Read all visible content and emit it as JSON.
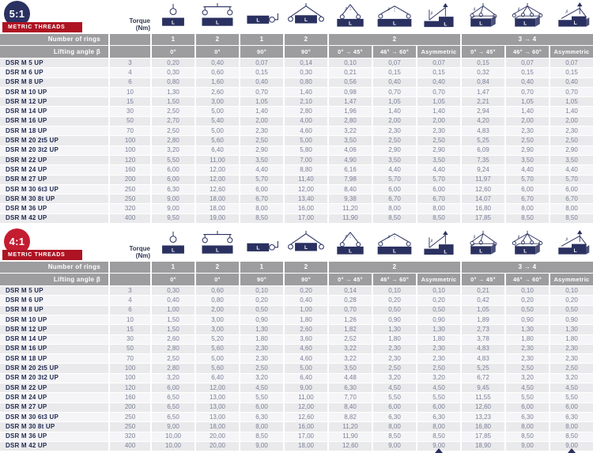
{
  "colors": {
    "navy": "#2a3160",
    "label_red": "#ae1322",
    "ratio4_red": "#c41c30",
    "header_gray": "#9d9da0"
  },
  "tables": [
    {
      "ratio": "5:1",
      "badge_color": "#2a3160",
      "thread_label": "METRIC THREADS",
      "torque_header": {
        "line1": "Torque",
        "line2": "(Nm)"
      },
      "rings_header": "Number of rings",
      "angle_header": "Lifting angle β",
      "rings": [
        "1",
        "2",
        "1",
        "2",
        "2",
        "3 → 4"
      ],
      "ring_spans": [
        1,
        1,
        1,
        1,
        3,
        3
      ],
      "angles": [
        "0°",
        "0°",
        "90°",
        "90°",
        "0° → 45°",
        "46° → 60°",
        "Asymmetric",
        "0° → 45°",
        "46° → 60°",
        "Asymmetric"
      ],
      "icons": [
        "one-ring-vertical",
        "two-rings-spreader",
        "one-ring-side",
        "two-rings-side",
        "two-leg-sling-narrow",
        "two-leg-sling-wide",
        "two-leg-asymmetric",
        "three-leg-sling",
        "four-leg-sling",
        "multi-leg-asymmetric"
      ],
      "rows": [
        {
          "name": "DSR M 5 UP",
          "torque": "3",
          "values": [
            "0,20",
            "0,40",
            "0,07",
            "0,14",
            "0,10",
            "0,07",
            "0,07",
            "0,15",
            "0,07",
            "0,07"
          ]
        },
        {
          "name": "DSR M 6 UP",
          "torque": "4",
          "values": [
            "0,30",
            "0,60",
            "0,15",
            "0,30",
            "0,21",
            "0,15",
            "0,15",
            "0,32",
            "0,15",
            "0,15"
          ]
        },
        {
          "name": "DSR M 8 UP",
          "torque": "6",
          "values": [
            "0,80",
            "1,60",
            "0,40",
            "0,80",
            "0,56",
            "0,40",
            "0,40",
            "0,84",
            "0,40",
            "0,40"
          ]
        },
        {
          "name": "DSR M 10 UP",
          "torque": "10",
          "values": [
            "1,30",
            "2,60",
            "0,70",
            "1,40",
            "0,98",
            "0,70",
            "0,70",
            "1,47",
            "0,70",
            "0,70"
          ]
        },
        {
          "name": "DSR M 12 UP",
          "torque": "15",
          "values": [
            "1,50",
            "3,00",
            "1,05",
            "2,10",
            "1,47",
            "1,05",
            "1,05",
            "2,21",
            "1,05",
            "1,05"
          ]
        },
        {
          "name": "DSR M 14 UP",
          "torque": "30",
          "values": [
            "2,50",
            "5,00",
            "1,40",
            "2,80",
            "1,96",
            "1,40",
            "1,40",
            "2,94",
            "1,40",
            "1,40"
          ]
        },
        {
          "name": "DSR M 16 UP",
          "torque": "50",
          "values": [
            "2,70",
            "5,40",
            "2,00",
            "4,00",
            "2,80",
            "2,00",
            "2,00",
            "4,20",
            "2,00",
            "2,00"
          ]
        },
        {
          "name": "DSR M 18 UP",
          "torque": "70",
          "values": [
            "2,50",
            "5,00",
            "2,30",
            "4,60",
            "3,22",
            "2,30",
            "2,30",
            "4,83",
            "2,30",
            "2,30"
          ]
        },
        {
          "name": "DSR M 20 2t5 UP",
          "torque": "100",
          "values": [
            "2,80",
            "5,60",
            "2,50",
            "5,00",
            "3,50",
            "2,50",
            "2,50",
            "5,25",
            "2,50",
            "2,50"
          ]
        },
        {
          "name": "DSR M 20 3t2 UP",
          "torque": "100",
          "values": [
            "3,20",
            "6,40",
            "2,90",
            "5,80",
            "4,06",
            "2,90",
            "2,90",
            "6,09",
            "2,90",
            "2,90"
          ]
        },
        {
          "name": "DSR M 22 UP",
          "torque": "120",
          "values": [
            "5,50",
            "11,00",
            "3,50",
            "7,00",
            "4,90",
            "3,50",
            "3,50",
            "7,35",
            "3,50",
            "3,50"
          ]
        },
        {
          "name": "DSR M 24 UP",
          "torque": "160",
          "values": [
            "6,00",
            "12,00",
            "4,40",
            "8,80",
            "6,16",
            "4,40",
            "4,40",
            "9,24",
            "4,40",
            "4,40"
          ]
        },
        {
          "name": "DSR M 27 UP",
          "torque": "200",
          "values": [
            "6,00",
            "12,00",
            "5,70",
            "11,40",
            "7,98",
            "5,70",
            "5,70",
            "11,97",
            "5,70",
            "5,70"
          ]
        },
        {
          "name": "DSR M 30 6t3 UP",
          "torque": "250",
          "values": [
            "6,30",
            "12,60",
            "6,00",
            "12,00",
            "8,40",
            "6,00",
            "6,00",
            "12,60",
            "6,00",
            "6,00"
          ]
        },
        {
          "name": "DSR M 30 8t UP",
          "torque": "250",
          "values": [
            "9,00",
            "18,00",
            "6,70",
            "13,40",
            "9,38",
            "6,70",
            "6,70",
            "14,07",
            "6,70",
            "6,70"
          ]
        },
        {
          "name": "DSR M 36 UP",
          "torque": "320",
          "values": [
            "9,00",
            "18,00",
            "8,00",
            "16,00",
            "11,20",
            "8,00",
            "8,00",
            "16,80",
            "8,00",
            "8,00"
          ]
        },
        {
          "name": "DSR M 42 UP",
          "torque": "400",
          "values": [
            "9,50",
            "19,00",
            "8,50",
            "17,00",
            "11,90",
            "8,50",
            "8,50",
            "17,85",
            "8,50",
            "8,50"
          ]
        }
      ]
    },
    {
      "ratio": "4:1",
      "badge_color": "#c41c30",
      "thread_label": "METRIC THREADS",
      "torque_header": {
        "line1": "Torque",
        "line2": "(Nm)"
      },
      "rings_header": "Number of rings",
      "angle_header": "Lifting angle β",
      "rings": [
        "1",
        "2",
        "1",
        "2",
        "2",
        "3 → 4"
      ],
      "ring_spans": [
        1,
        1,
        1,
        1,
        3,
        3
      ],
      "angles": [
        "0°",
        "0°",
        "90°",
        "90°",
        "0° → 45°",
        "46° → 60°",
        "Asymmetric",
        "0° → 45°",
        "46° → 60°",
        "Asymmetric"
      ],
      "icons": [
        "one-ring-vertical",
        "two-rings-spreader",
        "one-ring-side",
        "two-rings-side",
        "two-leg-sling-narrow",
        "two-leg-sling-wide",
        "two-leg-asymmetric",
        "three-leg-sling",
        "four-leg-sling",
        "multi-leg-asymmetric"
      ],
      "rows": [
        {
          "name": "DSR M 5 UP",
          "torque": "3",
          "values": [
            "0,30",
            "0,60",
            "0,10",
            "0,20",
            "0,14",
            "0,10",
            "0,10",
            "0,21",
            "0,10",
            "0,10"
          ]
        },
        {
          "name": "DSR M 6 UP",
          "torque": "4",
          "values": [
            "0,40",
            "0,80",
            "0,20",
            "0,40",
            "0,28",
            "0,20",
            "0,20",
            "0,42",
            "0,20",
            "0,20"
          ]
        },
        {
          "name": "DSR M 8 UP",
          "torque": "6",
          "values": [
            "1,00",
            "2,00",
            "0,50",
            "1,00",
            "0,70",
            "0,50",
            "0,50",
            "1,05",
            "0,50",
            "0,50"
          ]
        },
        {
          "name": "DSR M 10 UP",
          "torque": "10",
          "values": [
            "1,50",
            "3,00",
            "0,90",
            "1,80",
            "1,26",
            "0,90",
            "0,90",
            "1,89",
            "0,90",
            "0,90"
          ]
        },
        {
          "name": "DSR M 12 UP",
          "torque": "15",
          "values": [
            "1,50",
            "3,00",
            "1,30",
            "2,60",
            "1,82",
            "1,30",
            "1,30",
            "2,73",
            "1,30",
            "1,30"
          ]
        },
        {
          "name": "DSR M 14 UP",
          "torque": "30",
          "values": [
            "2,60",
            "5,20",
            "1,80",
            "3,60",
            "2,52",
            "1,80",
            "1,80",
            "3,78",
            "1,80",
            "1,80"
          ]
        },
        {
          "name": "DSR M 16 UP",
          "torque": "50",
          "values": [
            "2,80",
            "5,60",
            "2,30",
            "4,60",
            "3,22",
            "2,30",
            "2,30",
            "4,83",
            "2,30",
            "2,30"
          ]
        },
        {
          "name": "DSR M 18 UP",
          "torque": "70",
          "values": [
            "2,50",
            "5,00",
            "2,30",
            "4,60",
            "3,22",
            "2,30",
            "2,30",
            "4,83",
            "2,30",
            "2,30"
          ]
        },
        {
          "name": "DSR M 20 2t5 UP",
          "torque": "100",
          "values": [
            "2,80",
            "5,60",
            "2,50",
            "5,00",
            "3,50",
            "2,50",
            "2,50",
            "5,25",
            "2,50",
            "2,50"
          ]
        },
        {
          "name": "DSR M 20 3t2 UP",
          "torque": "100",
          "values": [
            "3,20",
            "6,40",
            "3,20",
            "6,40",
            "4,48",
            "3,20",
            "3,20",
            "6,72",
            "3,20",
            "3,20"
          ]
        },
        {
          "name": "DSR M 22 UP",
          "torque": "120",
          "values": [
            "6,00",
            "12,00",
            "4,50",
            "9,00",
            "6,30",
            "4,50",
            "4,50",
            "9,45",
            "4,50",
            "4,50"
          ]
        },
        {
          "name": "DSR M 24 UP",
          "torque": "160",
          "values": [
            "6,50",
            "13,00",
            "5,50",
            "11,00",
            "7,70",
            "5,50",
            "5,50",
            "11,55",
            "5,50",
            "5,50"
          ]
        },
        {
          "name": "DSR M 27 UP",
          "torque": "200",
          "values": [
            "6,50",
            "13,00",
            "6,00",
            "12,00",
            "8,40",
            "6,00",
            "6,00",
            "12,60",
            "6,00",
            "6,00"
          ]
        },
        {
          "name": "DSR M 30 6t3 UP",
          "torque": "250",
          "values": [
            "6,50",
            "13,00",
            "6,30",
            "12,60",
            "8,82",
            "6,30",
            "6,30",
            "13,23",
            "6,30",
            "6,30"
          ]
        },
        {
          "name": "DSR M 30 8t UP",
          "torque": "250",
          "values": [
            "9,00",
            "18,00",
            "8,00",
            "16,00",
            "11,20",
            "8,00",
            "8,00",
            "16,80",
            "8,00",
            "8,00"
          ]
        },
        {
          "name": "DSR M 36 UP",
          "torque": "320",
          "values": [
            "10,00",
            "20,00",
            "8,50",
            "17,00",
            "11,90",
            "8,50",
            "8,50",
            "17,85",
            "8,50",
            "8,50"
          ]
        },
        {
          "name": "DSR M 42 UP",
          "torque": "400",
          "values": [
            "10,00",
            "20,00",
            "9,00",
            "18,00",
            "12,60",
            "9,00",
            "9,00",
            "18,90",
            "9,00",
            "9,00"
          ]
        }
      ]
    }
  ],
  "footer": {
    "cutoff_icons": [
      "asymmetric-arrow-tip",
      "asymmetric-arrow-tip"
    ]
  }
}
